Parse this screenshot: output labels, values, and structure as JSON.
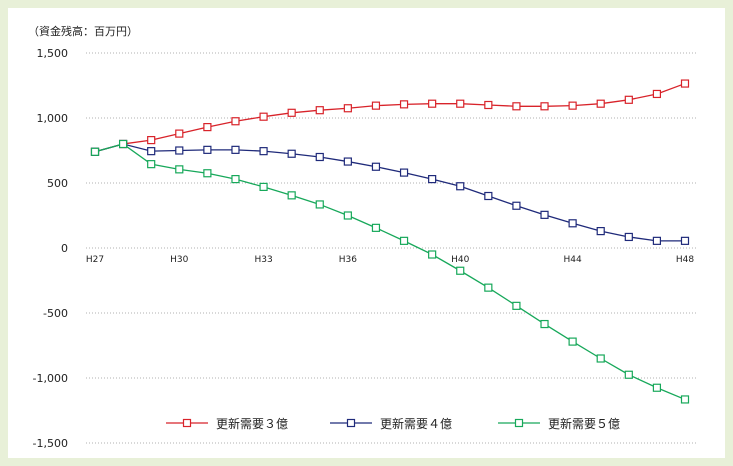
{
  "colors": {
    "page_background": "#e8f0d8",
    "grid": "#999999",
    "series": [
      "#d8232a",
      "#1f2a7a",
      "#17a85a"
    ]
  },
  "chart_data": {
    "type": "line",
    "title": "",
    "unit_label": "（資金残高：百万円）",
    "xlabel": "",
    "ylabel": "",
    "ylim": [
      -1500,
      1500
    ],
    "y_ticks": [
      1500,
      1000,
      500,
      0,
      -500,
      -1000,
      -1500
    ],
    "y_tick_labels": [
      "1,500",
      "1,000",
      "500",
      "0",
      "-500",
      "-1,000",
      "-1,500"
    ],
    "x_count": 22,
    "x_tick_labels": [
      {
        "index": 0,
        "label": "H27"
      },
      {
        "index": 3,
        "label": "H30"
      },
      {
        "index": 6,
        "label": "H33"
      },
      {
        "index": 9,
        "label": "H36"
      },
      {
        "index": 13,
        "label": "H40"
      },
      {
        "index": 17,
        "label": "H44"
      },
      {
        "index": 21,
        "label": "H48"
      }
    ],
    "grid": "horizontal-dotted",
    "legend_position": "bottom",
    "marker": "open-square",
    "series": [
      {
        "name": "更新需要３億",
        "values": [
          740,
          800,
          830,
          880,
          930,
          975,
          1010,
          1040,
          1060,
          1075,
          1095,
          1105,
          1110,
          1110,
          1100,
          1090,
          1090,
          1095,
          1110,
          1140,
          1185,
          1265
        ]
      },
      {
        "name": "更新需要４億",
        "values": [
          740,
          800,
          745,
          750,
          755,
          755,
          745,
          725,
          700,
          665,
          625,
          580,
          530,
          475,
          400,
          325,
          255,
          190,
          130,
          85,
          55,
          55
        ]
      },
      {
        "name": "更新需要５億",
        "values": [
          740,
          800,
          645,
          605,
          575,
          530,
          470,
          405,
          335,
          250,
          155,
          55,
          -50,
          -175,
          -305,
          -445,
          -585,
          -720,
          -850,
          -975,
          -1075,
          -1165
        ]
      }
    ]
  }
}
